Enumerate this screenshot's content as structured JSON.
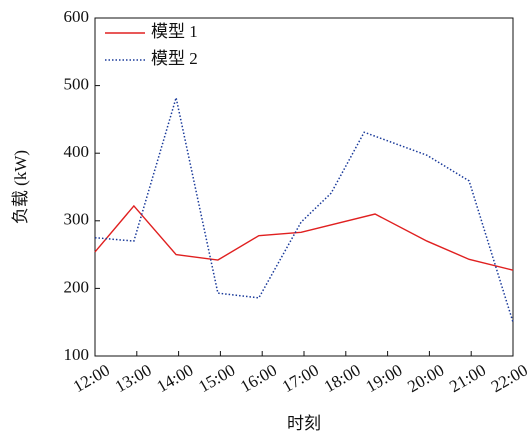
{
  "chart_data": {
    "type": "line",
    "xlabel": "时刻",
    "ylabel": "负载 (kW)",
    "xlim": [
      12,
      22
    ],
    "xticks": [
      {
        "value": 12,
        "label": "12:00"
      },
      {
        "value": 13,
        "label": "13:00"
      },
      {
        "value": 14,
        "label": "14:00"
      },
      {
        "value": 15,
        "label": "15:00"
      },
      {
        "value": 16,
        "label": "16:00"
      },
      {
        "value": 17,
        "label": "17:00"
      },
      {
        "value": 18,
        "label": "18:00"
      },
      {
        "value": 19,
        "label": "19:00"
      },
      {
        "value": 20,
        "label": "20:00"
      },
      {
        "value": 21,
        "label": "21:00"
      },
      {
        "value": 22,
        "label": "22:00"
      }
    ],
    "ylim": [
      100,
      600
    ],
    "yticks": [
      100,
      200,
      300,
      400,
      500,
      600
    ],
    "legend": "upper left",
    "series": [
      {
        "name": "模型 1",
        "color": "#e02020",
        "dash": "solid",
        "x": [
          12,
          12.93,
          13.94,
          14.94,
          15.92,
          16.93,
          18.7,
          19.94,
          20.95,
          22
        ],
        "values": [
          254,
          322,
          250,
          242,
          278,
          283,
          310,
          270,
          243,
          227
        ]
      },
      {
        "name": "模型 2",
        "color": "#1a3a9a",
        "dash": "dotted",
        "x": [
          12,
          12.93,
          13.94,
          14.94,
          15.92,
          16.93,
          17.65,
          18.44,
          19.94,
          20.95,
          22
        ],
        "values": [
          275,
          270,
          482,
          193,
          186,
          298,
          341,
          431,
          397,
          359,
          150
        ]
      }
    ]
  }
}
